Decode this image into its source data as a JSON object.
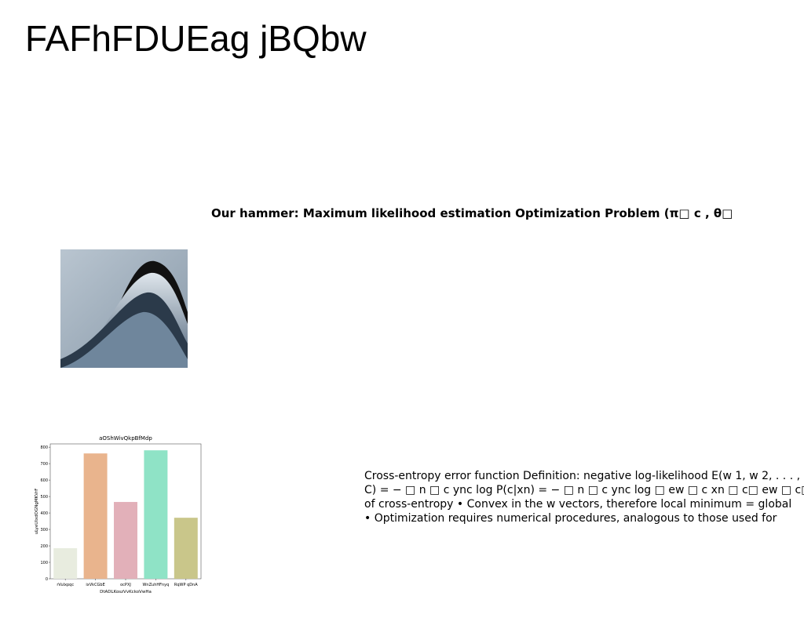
{
  "header": {
    "title": "FAFhFDUEag jBQbw"
  },
  "subtitle": "Our hammer: Maximum likelihood estimation Optimization Problem (π□ c , θ□",
  "body": {
    "lines": [
      "Cross-entropy error function Definition: negative log-likelihood E(w 1, w 2, . . . ,",
      "C) = − □ n □ c ync log P(c|xn) = − □ n □ c ync log □ ew □ c xn □ c□ ew □ c□xn □",
      "of cross-entropy • Convex in the w vectors, therefore local minimum = global",
      "• Optimization requires numerical procedures, analogous to those used for"
    ]
  },
  "chart_data": {
    "type": "bar",
    "title": "aOShWivQkpBfMdp",
    "x_label": "DtADLKoszVvKckoVwHa",
    "y_label": "uLyeUIxdOGNgMKVrF",
    "categories": [
      "rVulxpqc",
      "ixVkCGbE",
      "ocPXJ",
      "WnZuhHFnyq",
      "RqWP qDnA"
    ],
    "values": [
      186,
      762,
      467,
      781,
      371
    ],
    "colors": [
      "#e8ecdf",
      "#e9b48d",
      "#e2b0b9",
      "#8fe3c6",
      "#c9c68a"
    ],
    "ylim": [
      0,
      820
    ],
    "yticks": [
      0,
      100,
      200,
      300,
      400,
      500,
      600,
      700,
      800
    ]
  }
}
